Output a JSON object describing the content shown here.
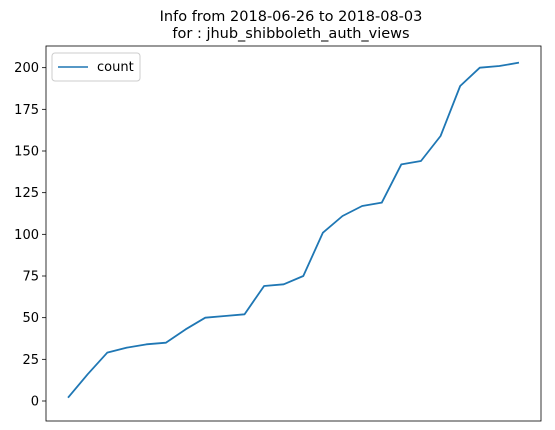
{
  "chart_data": {
    "type": "line",
    "title_line1": "Info from 2018-06-26 to 2018-08-03",
    "title_line2": "for  : jhub_shibboleth_auth_views",
    "xlabel": "",
    "ylabel": "",
    "x_ticks_shown": false,
    "ylim": [
      -12,
      213
    ],
    "yticks": [
      0,
      25,
      50,
      75,
      100,
      125,
      150,
      175,
      200
    ],
    "grid": false,
    "legend_placement": "top-left",
    "series": [
      {
        "name": "count",
        "color": "#1f77b4",
        "values": [
          2,
          16,
          29,
          32,
          34,
          35,
          43,
          50,
          51,
          52,
          69,
          70,
          75,
          101,
          111,
          117,
          119,
          142,
          144,
          159,
          189,
          200,
          201,
          203
        ]
      }
    ]
  }
}
